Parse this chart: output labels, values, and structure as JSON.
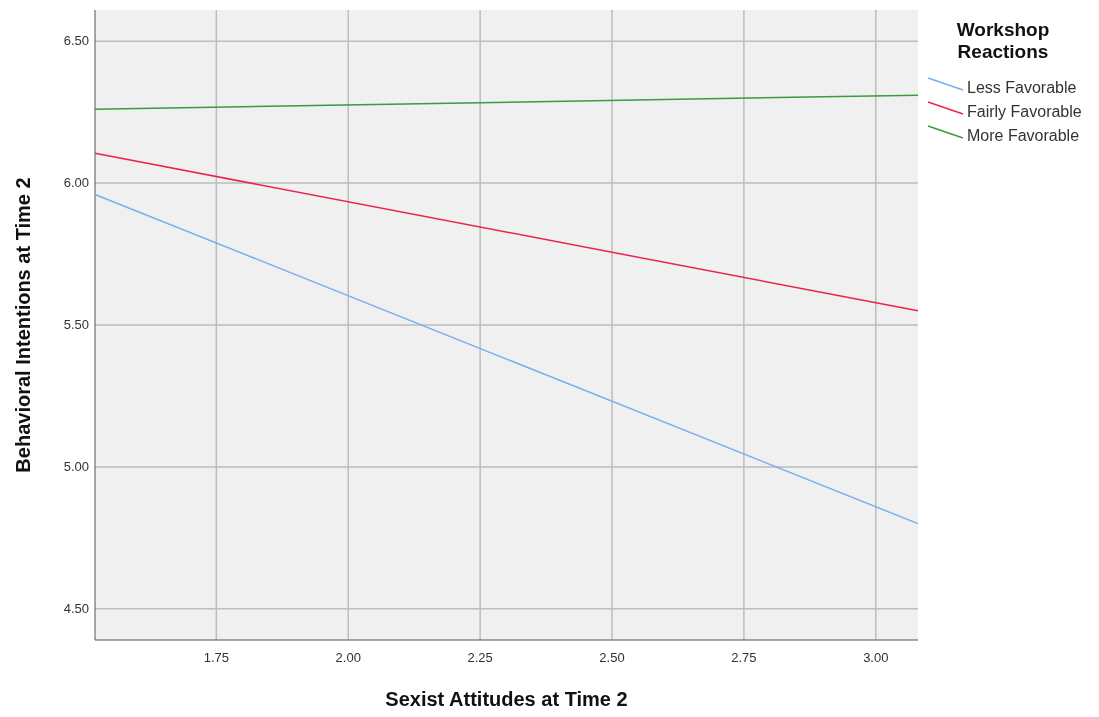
{
  "chart_data": {
    "type": "line",
    "xlabel": "Sexist Attitudes at Time 2",
    "ylabel": "Behavioral Intentions at Time 2",
    "legend_title": "Workshop Reactions",
    "x": [
      1.52,
      3.08
    ],
    "series": [
      {
        "name": "Less Favorable",
        "color": "#7aaef0",
        "values": [
          5.96,
          4.8
        ]
      },
      {
        "name": "Fairly Favorable",
        "color": "#e8254e",
        "values": [
          6.105,
          5.55
        ]
      },
      {
        "name": "More Favorable",
        "color": "#3d9a3d",
        "values": [
          6.26,
          6.31
        ]
      }
    ],
    "xlim": [
      1.52,
      3.08
    ],
    "ylim": [
      4.39,
      6.61
    ],
    "xticks": [
      {
        "value": 1.75,
        "label": "1.75"
      },
      {
        "value": 2,
        "label": "2.00"
      },
      {
        "value": 2.25,
        "label": "2.25"
      },
      {
        "value": 2.5,
        "label": "2.50"
      },
      {
        "value": 2.75,
        "label": "2.75"
      },
      {
        "value": 3,
        "label": "3.00"
      }
    ],
    "yticks": [
      {
        "value": 4.5,
        "label": "4.50"
      },
      {
        "value": 5,
        "label": "5.00"
      },
      {
        "value": 5.5,
        "label": "5.50"
      },
      {
        "value": 6,
        "label": "6.00"
      },
      {
        "value": 6.5,
        "label": "6.50"
      }
    ],
    "grid": true,
    "legend": "right",
    "marker": "none",
    "line_style": "solid"
  }
}
